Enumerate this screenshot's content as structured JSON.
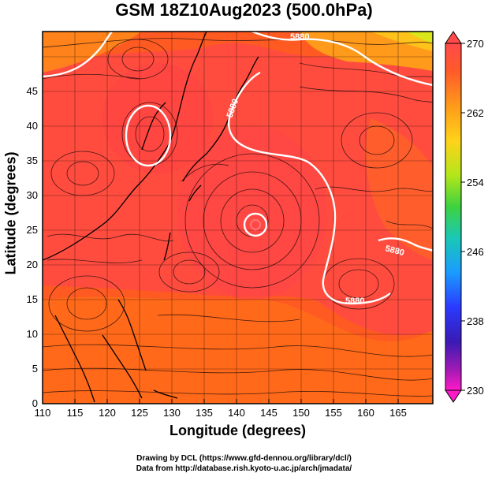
{
  "title": "GSM 18Z10Aug2023 (500.0hPa)",
  "axes": {
    "xlabel": "Longitude (degrees)",
    "ylabel": "Latitude  (degrees)",
    "x_ticks": [
      "110",
      "115",
      "120",
      "125",
      "130",
      "135",
      "140",
      "145",
      "150",
      "155",
      "160",
      "165"
    ],
    "y_ticks": [
      "0",
      "5",
      "10",
      "15",
      "20",
      "25",
      "30",
      "35",
      "40",
      "45"
    ],
    "xlim": [
      110,
      170
    ],
    "ylim": [
      0,
      50
    ]
  },
  "colorbar": {
    "ticks": [
      "270",
      "262",
      "254",
      "246",
      "238",
      "230"
    ],
    "colors": [
      "#ff4a4a",
      "#ff7a1a",
      "#ffc21a",
      "#c8e61a",
      "#3ed23e",
      "#1ac8b4",
      "#1a8cff",
      "#2a3aff",
      "#3a1ab4",
      "#a01ab4",
      "#ff1ac8"
    ]
  },
  "contours": {
    "labels": [
      "5880",
      "5880",
      "5880",
      "5880"
    ]
  },
  "credits": {
    "line1": "Drawing by DCL (https://www.gfd-dennou.org/library/dcl/)",
    "line2": "Data from http://database.rish.kyoto-u.ac.jp/arch/jmadata/"
  }
}
